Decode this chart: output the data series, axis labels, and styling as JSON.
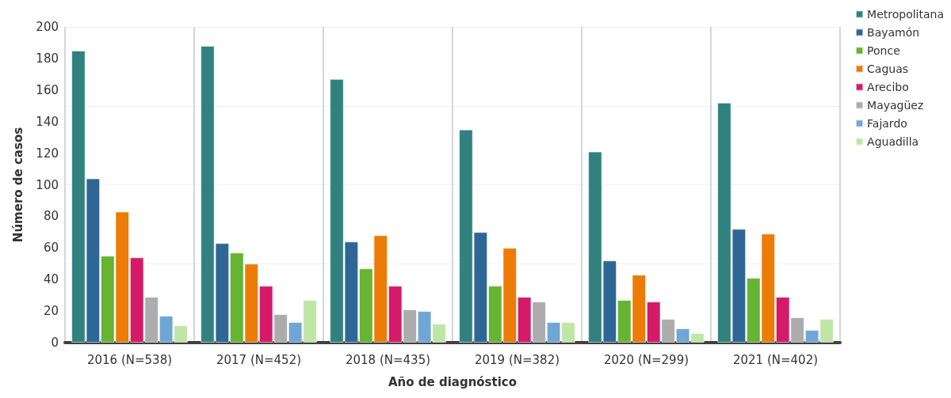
{
  "chart_data": {
    "type": "bar",
    "xlabel": "Año de diagnóstico",
    "ylabel": "Número de casos",
    "categories": [
      "2016 (N=538)",
      "2017 (N=452)",
      "2018 (N=435)",
      "2019 (N=382)",
      "2020 (N=299)",
      "2021 (N=402)"
    ],
    "series": [
      {
        "name": "Metropolitana",
        "color": "#31827f",
        "values": [
          185,
          188,
          167,
          135,
          121,
          152
        ]
      },
      {
        "name": "Bayamón",
        "color": "#2e6795",
        "values": [
          104,
          63,
          64,
          70,
          52,
          72
        ]
      },
      {
        "name": "Ponce",
        "color": "#66b432",
        "values": [
          55,
          57,
          47,
          36,
          27,
          41
        ]
      },
      {
        "name": "Caguas",
        "color": "#ec7c05",
        "values": [
          83,
          50,
          68,
          60,
          43,
          69
        ]
      },
      {
        "name": "Arecibo",
        "color": "#d51a69",
        "values": [
          54,
          36,
          36,
          29,
          26,
          29
        ]
      },
      {
        "name": "Mayagüez",
        "color": "#acacac",
        "values": [
          29,
          18,
          21,
          26,
          15,
          16
        ]
      },
      {
        "name": "Fajardo",
        "color": "#6fa6d4",
        "values": [
          17,
          13,
          20,
          13,
          9,
          8
        ]
      },
      {
        "name": "Aguadilla",
        "color": "#c0e6a6",
        "values": [
          11,
          27,
          12,
          13,
          6,
          15
        ]
      }
    ],
    "ylim": [
      0,
      200
    ],
    "yticks": [
      0,
      20,
      40,
      60,
      80,
      100,
      120,
      140,
      160,
      180,
      200
    ],
    "grid": true,
    "legend": "top right"
  }
}
